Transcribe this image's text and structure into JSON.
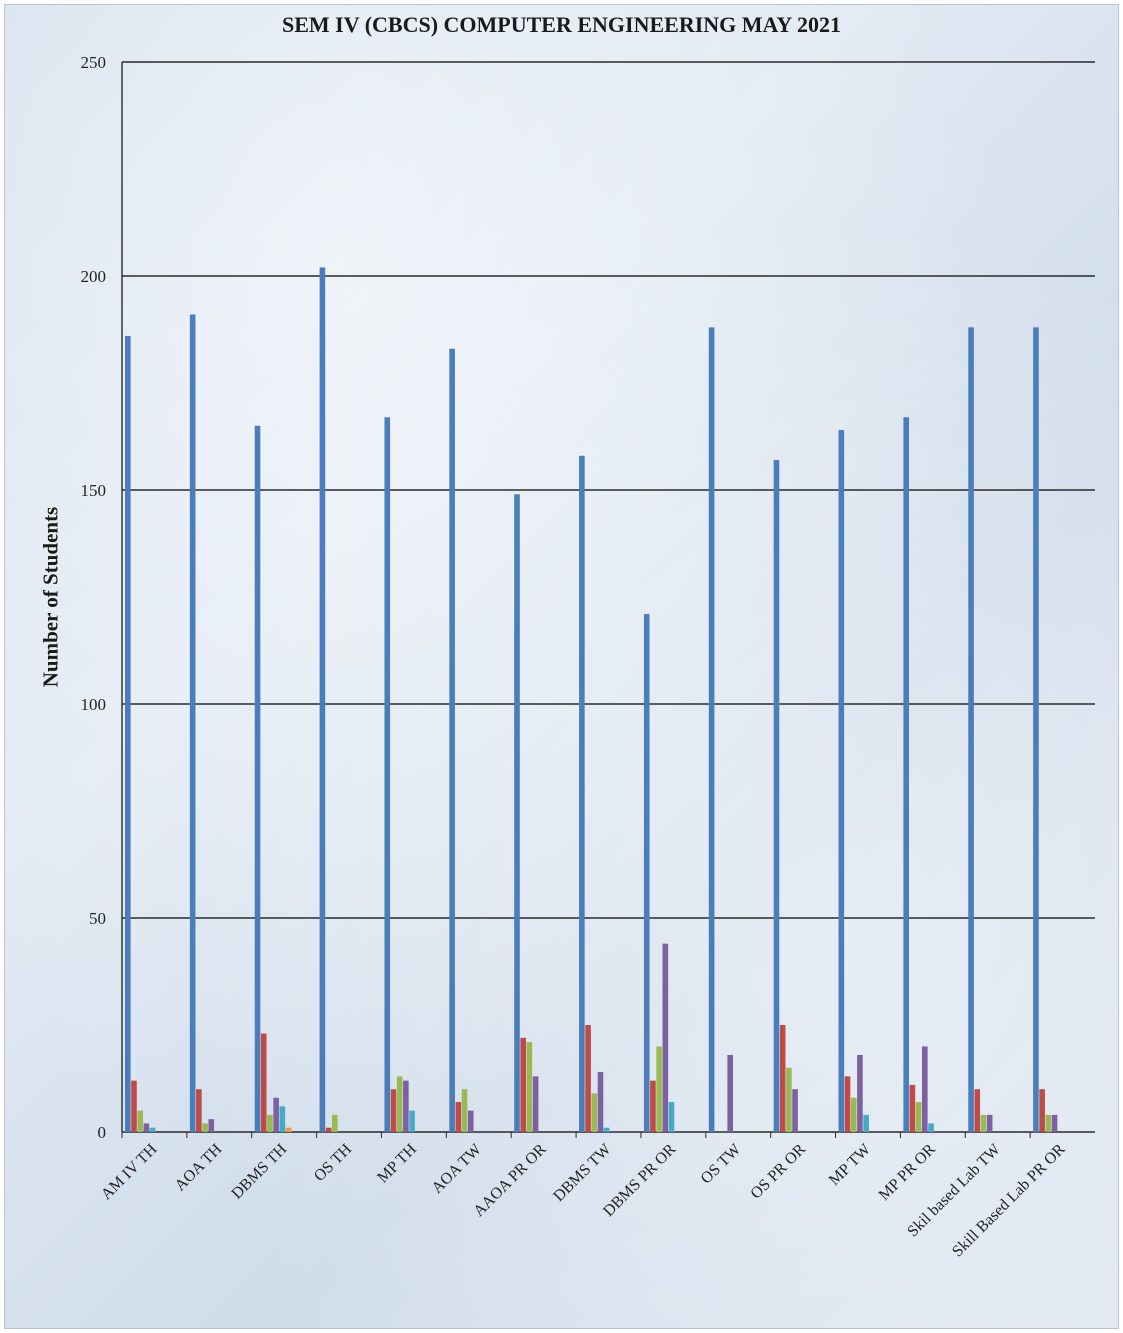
{
  "chart_data": {
    "type": "bar",
    "title": "SEM IV (CBCS) COMPUTER ENGINEERING MAY 2021",
    "xlabel": "",
    "ylabel": "Number of Students",
    "ylim": [
      0,
      250
    ],
    "yticks": [
      0,
      50,
      100,
      150,
      200,
      250
    ],
    "grid": true,
    "legend": "none",
    "categories": [
      "AM IV TH",
      "AOA TH",
      "DBMS TH",
      "OS TH",
      "MP TH",
      "AOA TW",
      "AAOA PR OR",
      "DBMS TW",
      "DBMS PR OR",
      "OS TW",
      "OS  PR OR",
      "MP TW",
      "MP PR OR",
      "Skil based Lab TW",
      "Skill Based Lab PR OR"
    ],
    "series": [
      {
        "color": "#4a7ebb",
        "values": [
          186,
          191,
          165,
          202,
          167,
          183,
          149,
          158,
          121,
          188,
          157,
          164,
          167,
          188,
          188
        ]
      },
      {
        "color": "#be4b48",
        "values": [
          12,
          10,
          23,
          1,
          10,
          7,
          22,
          25,
          12,
          0,
          25,
          13,
          11,
          10,
          10
        ]
      },
      {
        "color": "#98b954",
        "values": [
          5,
          2,
          4,
          4,
          13,
          10,
          21,
          9,
          20,
          0,
          15,
          8,
          7,
          4,
          4
        ]
      },
      {
        "color": "#7d60a0",
        "values": [
          2,
          3,
          8,
          0,
          12,
          5,
          13,
          14,
          44,
          18,
          10,
          18,
          20,
          4,
          4
        ]
      },
      {
        "color": "#46aac5",
        "values": [
          1,
          0,
          6,
          0,
          5,
          0,
          0,
          1,
          7,
          0,
          0,
          4,
          2,
          0,
          0
        ]
      },
      {
        "color": "#f79646",
        "values": [
          0,
          0,
          1,
          0,
          0,
          0,
          0,
          0,
          0,
          0,
          0,
          0,
          0,
          0,
          0
        ]
      }
    ]
  }
}
